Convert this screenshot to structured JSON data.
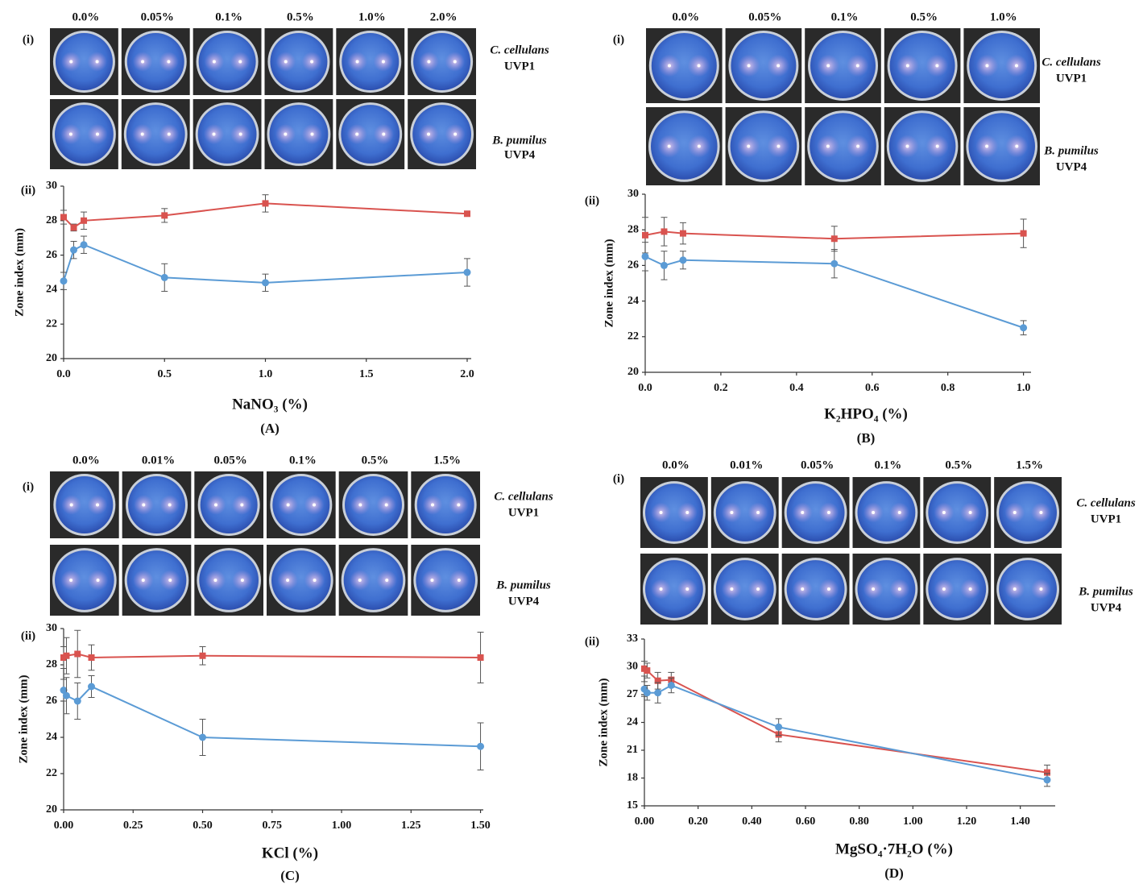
{
  "chart_data": [
    {
      "type": "line",
      "panel_label": "(A)",
      "part_labels": [
        "(i)",
        "(ii)"
      ],
      "image_column_labels": [
        "0.0%",
        "0.05%",
        "0.1%",
        "0.5%",
        "1.0%",
        "2.0%"
      ],
      "image_row_labels": [
        [
          "C. cellulans",
          "UVP1"
        ],
        [
          "B. pumilus",
          "UVP4"
        ]
      ],
      "ylabel": "Zone index (mm)",
      "xlabel": "NaNO₃ (%)",
      "x": [
        0,
        0.05,
        0.1,
        0.5,
        1.0,
        2.0
      ],
      "series": [
        {
          "color": "#d9534f",
          "marker": "square",
          "values": [
            28.2,
            27.6,
            28.0,
            28.3,
            29.0,
            28.4
          ],
          "errors": [
            0.4,
            0.2,
            0.5,
            0.4,
            0.5,
            0.1
          ]
        },
        {
          "color": "#5b9bd5",
          "marker": "circle",
          "values": [
            24.5,
            26.3,
            26.6,
            24.7,
            24.4,
            25.0
          ],
          "errors": [
            0.5,
            0.5,
            0.5,
            0.8,
            0.5,
            0.8
          ]
        }
      ],
      "xlim": [
        0,
        2.02
      ],
      "ylim": [
        20,
        30
      ],
      "xticks": [
        {
          "value": 0,
          "label": "0.0"
        },
        0.5,
        {
          "value": 1,
          "label": "1.0"
        },
        1.5,
        {
          "value": 2,
          "label": "2.0"
        }
      ],
      "yticks": [
        20,
        22,
        24,
        26,
        28,
        30
      ]
    },
    {
      "type": "line",
      "panel_label": "(B)",
      "part_labels": [
        "(i)",
        "(ii)"
      ],
      "image_column_labels": [
        "0.0%",
        "0.05%",
        "0.1%",
        "0.5%",
        "1.0%"
      ],
      "image_row_labels": [
        [
          "C. cellulans",
          "UVP1"
        ],
        [
          "B. pumilus",
          "UVP4"
        ]
      ],
      "ylabel": "Zone index (mm)",
      "xlabel": "K₂HPO₄ (%)",
      "x": [
        0,
        0.05,
        0.1,
        0.5,
        1.0
      ],
      "series": [
        {
          "color": "#d9534f",
          "marker": "square",
          "values": [
            27.7,
            27.9,
            27.8,
            27.5,
            27.8
          ],
          "errors": [
            1.0,
            0.8,
            0.6,
            0.7,
            0.8
          ]
        },
        {
          "color": "#5b9bd5",
          "marker": "circle",
          "values": [
            26.5,
            26.0,
            26.3,
            26.1,
            22.5
          ],
          "errors": [
            0.8,
            0.8,
            0.5,
            0.8,
            0.4
          ]
        }
      ],
      "xlim": [
        0,
        1.02
      ],
      "ylim": [
        20,
        30
      ],
      "xticks": [
        {
          "value": 0,
          "label": "0.0"
        },
        0.2,
        0.4,
        0.6,
        0.8,
        {
          "value": 1,
          "label": "1.0"
        }
      ],
      "yticks": [
        20,
        22,
        24,
        26,
        28,
        30
      ]
    },
    {
      "type": "line",
      "panel_label": "(C)",
      "part_labels": [
        "(i)",
        "(ii)"
      ],
      "image_column_labels": [
        "0.0%",
        "0.01%",
        "0.05%",
        "0.1%",
        "0.5%",
        "1.5%"
      ],
      "image_row_labels": [
        [
          "C. cellulans",
          "UVP1"
        ],
        [
          "B. pumilus",
          "UVP4"
        ]
      ],
      "ylabel": "Zone index (mm)",
      "xlabel": "KCl (%)",
      "x": [
        0,
        0.01,
        0.05,
        0.1,
        0.5,
        1.5
      ],
      "series": [
        {
          "color": "#d9534f",
          "marker": "square",
          "values": [
            28.4,
            28.5,
            28.6,
            28.4,
            28.5,
            28.4
          ],
          "errors": [
            0.6,
            1.0,
            1.3,
            0.7,
            0.5,
            1.4
          ]
        },
        {
          "color": "#5b9bd5",
          "marker": "circle",
          "values": [
            26.6,
            26.3,
            26.0,
            26.8,
            24.0,
            23.5
          ],
          "errors": [
            0.6,
            1.0,
            1.0,
            0.6,
            1.0,
            1.3
          ]
        }
      ],
      "xlim": [
        0,
        1.51
      ],
      "ylim": [
        20,
        30
      ],
      "xticks": [
        {
          "value": 0,
          "label": "0.00"
        },
        0.25,
        {
          "value": 0.5,
          "label": "0.50"
        },
        0.75,
        {
          "value": 1,
          "label": "1.00"
        },
        1.25,
        {
          "value": 1.5,
          "label": "1.50"
        }
      ],
      "yticks": [
        20,
        22,
        24,
        26,
        28,
        30
      ]
    },
    {
      "type": "line",
      "panel_label": "(D)",
      "part_labels": [
        "(i)",
        "(ii)"
      ],
      "image_column_labels": [
        "0.0%",
        "0.01%",
        "0.05%",
        "0.1%",
        "0.5%",
        "1.5%"
      ],
      "image_row_labels": [
        [
          "C. cellulans",
          "UVP1"
        ],
        [
          "B. pumilus",
          "UVP4"
        ]
      ],
      "ylabel": "Zone index (mm)",
      "xlabel": "MgSO₄·7H₂O (%)",
      "x": [
        0,
        0.01,
        0.05,
        0.1,
        0.5,
        1.5
      ],
      "series": [
        {
          "color": "#d9534f",
          "marker": "square",
          "values": [
            29.8,
            29.6,
            28.5,
            28.6,
            22.7,
            18.6
          ],
          "errors": [
            0.8,
            0.8,
            0.9,
            0.8,
            0.8,
            0.8
          ]
        },
        {
          "color": "#5b9bd5",
          "marker": "circle",
          "values": [
            27.6,
            27.2,
            27.2,
            28.0,
            23.5,
            17.8
          ],
          "errors": [
            0.8,
            0.8,
            1.1,
            0.8,
            0.9,
            0.7
          ]
        }
      ],
      "xlim": [
        0,
        1.53
      ],
      "ylim": [
        15,
        33
      ],
      "xticks": [
        {
          "value": 0,
          "label": "0.00"
        },
        {
          "value": 0.2,
          "label": "0.20"
        },
        {
          "value": 0.4,
          "label": "0.40"
        },
        {
          "value": 0.6,
          "label": "0.60"
        },
        {
          "value": 0.8,
          "label": "0.80"
        },
        {
          "value": 1,
          "label": "1.00"
        },
        {
          "value": 1.2,
          "label": "1.20"
        },
        {
          "value": 1.4,
          "label": "1.40"
        }
      ],
      "yticks": [
        15,
        18,
        21,
        24,
        27,
        30,
        33
      ]
    }
  ]
}
